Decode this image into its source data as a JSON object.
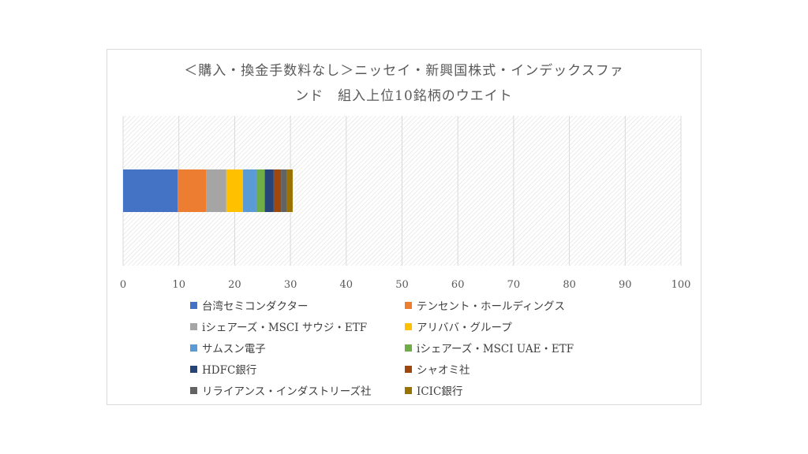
{
  "chart_data": {
    "type": "bar",
    "orientation": "horizontal",
    "stacked": true,
    "title_lines": [
      "＜購入・換金手数料なし＞ニッセイ・新興国株式・インデックスファ",
      "ンド　組入上位10銘柄のウエイト"
    ],
    "xlim": [
      0,
      100
    ],
    "x_ticks": [
      "0",
      "10",
      "20",
      "30",
      "40",
      "50",
      "60",
      "70",
      "80",
      "90",
      "100"
    ],
    "grid": true,
    "legend_position": "bottom",
    "series": [
      {
        "name": "台湾セミコンダクター",
        "value": 9.8,
        "color": "#4472C4"
      },
      {
        "name": "テンセント・ホールディングス",
        "value": 5.1,
        "color": "#ED7D31"
      },
      {
        "name": "iシェアーズ・MSCI サウジ・ETF",
        "value": 3.6,
        "color": "#A5A5A5"
      },
      {
        "name": "アリババ・グループ",
        "value": 3.0,
        "color": "#FFC000"
      },
      {
        "name": "サムスン電子",
        "value": 2.4,
        "color": "#5B9BD5"
      },
      {
        "name": "iシェアーズ・MSCI UAE・ETF",
        "value": 1.5,
        "color": "#70AD47"
      },
      {
        "name": "HDFC銀行",
        "value": 1.6,
        "color": "#264478"
      },
      {
        "name": "シャオミ社",
        "value": 1.3,
        "color": "#9E480E"
      },
      {
        "name": "リライアンス・インダストリーズ社",
        "value": 1.1,
        "color": "#636363"
      },
      {
        "name": "ICIC銀行",
        "value": 1.0,
        "color": "#997300"
      }
    ]
  }
}
